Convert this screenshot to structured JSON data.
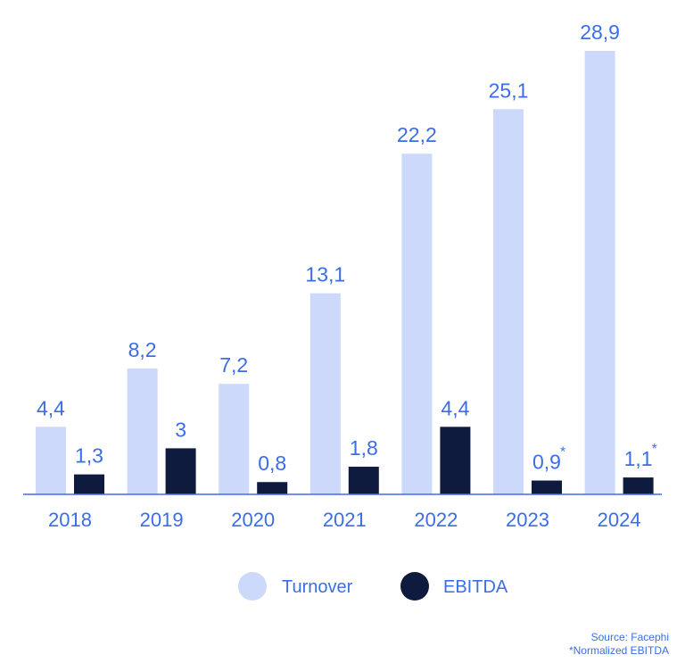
{
  "chart_data": {
    "type": "bar",
    "categories": [
      "2018",
      "2019",
      "2020",
      "2021",
      "2022",
      "2023",
      "2024"
    ],
    "series": [
      {
        "name": "Turnover",
        "color": "#ccd9fb",
        "values": [
          4.4,
          8.2,
          7.2,
          13.1,
          22.2,
          25.1,
          28.9
        ],
        "labels": [
          "4,4",
          "8,2",
          "7,2",
          "13,1",
          "22,2",
          "25,1",
          "28,9"
        ]
      },
      {
        "name": "EBITDA",
        "color": "#0e1a3e",
        "values": [
          1.3,
          3,
          0.8,
          1.8,
          4.4,
          0.9,
          1.1
        ],
        "labels": [
          "1,3",
          "3",
          "0,8",
          "1,8",
          "4,4",
          "0,9",
          "1,1"
        ],
        "annotations": [
          "",
          "",
          "",
          "",
          "",
          "*",
          "*"
        ]
      }
    ],
    "ylim": [
      0,
      28.9
    ],
    "title": "",
    "xlabel": "",
    "ylabel": "",
    "grid": false,
    "legend": "bottom-center",
    "axis_color": "#3b6ee6",
    "text_color": "#3b6ee6"
  },
  "footer": {
    "source": "Source: Facephi",
    "note": "*Normalized EBITDA"
  }
}
